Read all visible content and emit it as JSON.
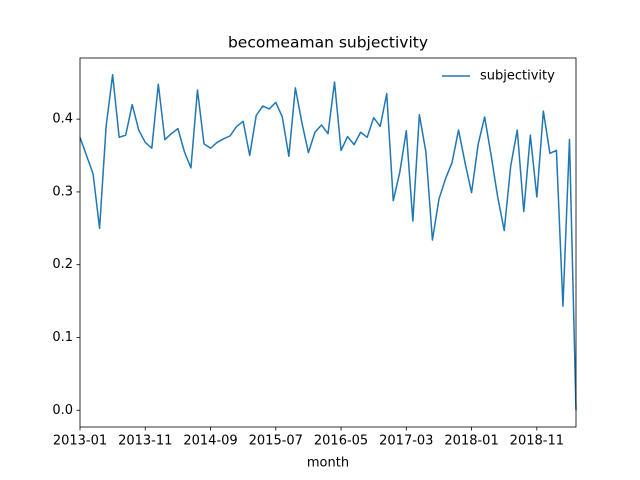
{
  "chart_data": {
    "type": "line",
    "title": "becomeaman subjectivity",
    "x_label": "month",
    "x": [
      "2013-01",
      "2013-02",
      "2013-03",
      "2013-04",
      "2013-05",
      "2013-06",
      "2013-07",
      "2013-08",
      "2013-09",
      "2013-10",
      "2013-11",
      "2013-12",
      "2014-01",
      "2014-02",
      "2014-03",
      "2014-04",
      "2014-05",
      "2014-06",
      "2014-07",
      "2014-08",
      "2014-09",
      "2014-10",
      "2014-11",
      "2014-12",
      "2015-01",
      "2015-02",
      "2015-03",
      "2015-04",
      "2015-05",
      "2015-06",
      "2015-07",
      "2015-08",
      "2015-09",
      "2015-10",
      "2015-11",
      "2015-12",
      "2016-01",
      "2016-02",
      "2016-03",
      "2016-04",
      "2016-05",
      "2016-06",
      "2016-07",
      "2016-08",
      "2016-09",
      "2016-10",
      "2016-11",
      "2016-12",
      "2017-01",
      "2017-02",
      "2017-03",
      "2017-04",
      "2017-05",
      "2017-06",
      "2017-07",
      "2017-08",
      "2017-09",
      "2017-10",
      "2017-11",
      "2017-12",
      "2018-01",
      "2018-02",
      "2018-03",
      "2018-04",
      "2018-05",
      "2018-06",
      "2018-07",
      "2018-08",
      "2018-09",
      "2018-10",
      "2018-11",
      "2018-12",
      "2019-01",
      "2019-02",
      "2019-03",
      "2019-04",
      "2019-05"
    ],
    "series": [
      {
        "name": "subjectivity",
        "color": "#1f77b4",
        "values": [
          0.375,
          0.35,
          0.325,
          0.25,
          0.39,
          0.461,
          0.375,
          0.378,
          0.42,
          0.385,
          0.368,
          0.36,
          0.448,
          0.372,
          0.38,
          0.387,
          0.355,
          0.333,
          0.44,
          0.366,
          0.36,
          0.368,
          0.373,
          0.377,
          0.39,
          0.397,
          0.35,
          0.405,
          0.418,
          0.414,
          0.423,
          0.403,
          0.349,
          0.443,
          0.395,
          0.354,
          0.382,
          0.392,
          0.38,
          0.451,
          0.357,
          0.376,
          0.365,
          0.382,
          0.375,
          0.402,
          0.39,
          0.435,
          0.288,
          0.327,
          0.384,
          0.26,
          0.406,
          0.355,
          0.234,
          0.29,
          0.318,
          0.34,
          0.385,
          0.34,
          0.299,
          0.365,
          0.403,
          0.35,
          0.293,
          0.247,
          0.336,
          0.385,
          0.273,
          0.378,
          0.293,
          0.411,
          0.353,
          0.357,
          0.143,
          0.372,
          0.0
        ]
      }
    ],
    "xlim": [
      "2013-01",
      "2019-05"
    ],
    "xticks": [
      "2013-01",
      "2013-11",
      "2014-09",
      "2015-07",
      "2016-05",
      "2017-03",
      "2018-01",
      "2018-11"
    ],
    "ylim": [
      -0.023,
      0.484
    ],
    "yticks": [
      {
        "value": 0,
        "label": "0.0"
      },
      0.1,
      0.2,
      0.3,
      0.4
    ],
    "legend": "upper right"
  }
}
